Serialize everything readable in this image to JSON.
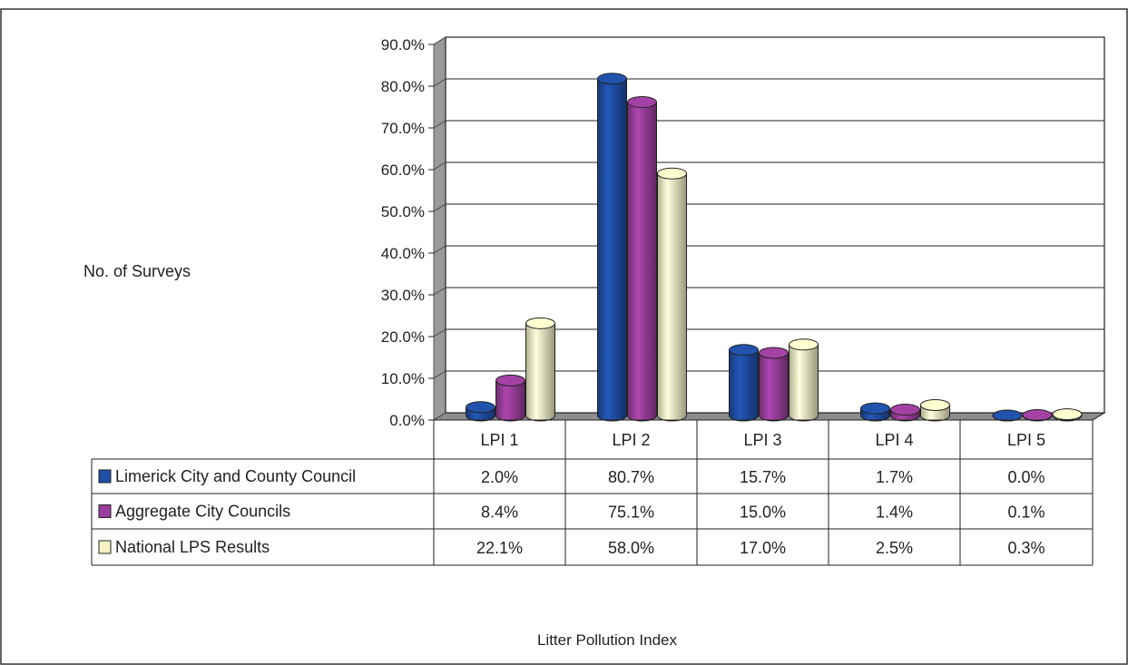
{
  "chart_data": {
    "type": "bar",
    "title": "",
    "xlabel": "Litter Pollution Index",
    "ylabel": "No. of Surveys",
    "categories": [
      "LPI 1",
      "LPI 2",
      "LPI 3",
      "LPI 4",
      "LPI 5"
    ],
    "ylim": [
      0,
      90
    ],
    "y_tick_labels": [
      "0.0%",
      "10.0%",
      "20.0%",
      "30.0%",
      "40.0%",
      "50.0%",
      "60.0%",
      "70.0%",
      "80.0%",
      "90.0%"
    ],
    "grid": true,
    "style": "3d-cylinder",
    "legend": "data-table",
    "series": [
      {
        "name": "Limerick City and County Council",
        "color": "#1f4fa6",
        "values": [
          2.0,
          80.7,
          15.7,
          1.7,
          0.0
        ],
        "labels": [
          "2.0%",
          "80.7%",
          "15.7%",
          "1.7%",
          "0.0%"
        ]
      },
      {
        "name": "Aggregate City Councils",
        "color": "#9b3f9c",
        "values": [
          8.4,
          75.1,
          15.0,
          1.4,
          0.1
        ],
        "labels": [
          "8.4%",
          "75.1%",
          "15.0%",
          "1.4%",
          "0.1%"
        ]
      },
      {
        "name": "National LPS Results",
        "color": "#f5f3c6",
        "values": [
          22.1,
          58.0,
          17.0,
          2.5,
          0.3
        ],
        "labels": [
          "22.1%",
          "58.0%",
          "17.0%",
          "2.5%",
          "0.3%"
        ]
      }
    ]
  }
}
